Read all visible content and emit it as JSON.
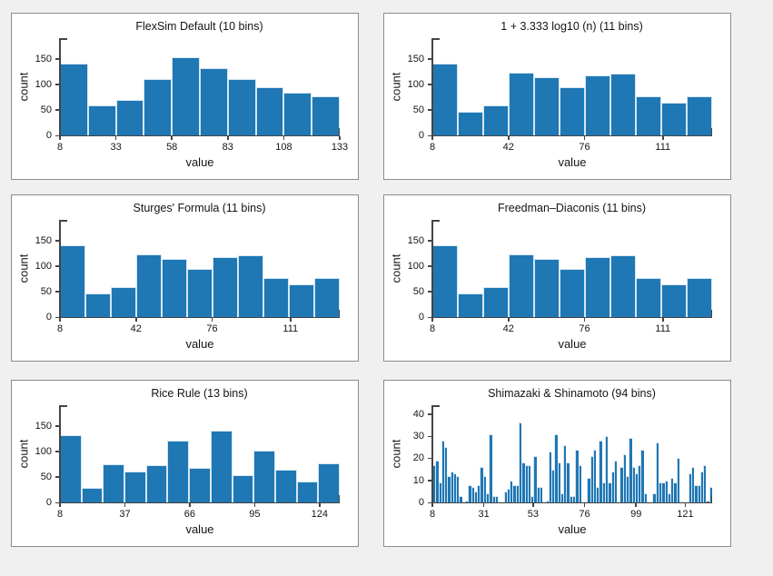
{
  "page": {
    "background_color": "#f0f0f0",
    "panel_background": "#ffffff",
    "panel_border_color": "#8c8c8c",
    "bar_color": "#1f77b4",
    "bar_edge_color": "#d6e6f2",
    "axis_color": "#454545",
    "text_color": "#141414",
    "grid_layout": "3 rows x 2 columns of histograms"
  },
  "chart_data": [
    {
      "type": "bar",
      "title": "FlexSim Default (10 bins)",
      "xlabel": "value",
      "ylabel": "count",
      "x_start": 8,
      "x_end": 133,
      "xticks": [
        8,
        33,
        58,
        83,
        108,
        133
      ],
      "yticks": [
        0,
        50,
        100,
        150
      ],
      "ymax": 190,
      "grid": false,
      "values": [
        140,
        58,
        69,
        110,
        153,
        132,
        110,
        95,
        84,
        77
      ]
    },
    {
      "type": "bar",
      "title": "1 + 3.333 log10 (n) (11 bins)",
      "xlabel": "value",
      "ylabel": "count",
      "x_start": 8,
      "x_end": 133,
      "xticks": [
        8,
        42,
        76,
        111
      ],
      "yticks": [
        0,
        50,
        100,
        150
      ],
      "ymax": 190,
      "grid": false,
      "values": [
        140,
        47,
        59,
        122,
        113,
        95,
        118,
        120,
        76,
        64,
        77
      ]
    },
    {
      "type": "bar",
      "title": "Sturges' Formula (11 bins)",
      "xlabel": "value",
      "ylabel": "count",
      "x_start": 8,
      "x_end": 133,
      "xticks": [
        8,
        42,
        76,
        111
      ],
      "yticks": [
        0,
        50,
        100,
        150
      ],
      "ymax": 190,
      "grid": false,
      "values": [
        140,
        47,
        59,
        122,
        113,
        95,
        118,
        120,
        76,
        64,
        77
      ]
    },
    {
      "type": "bar",
      "title": "Freedman–Diaconis (11 bins)",
      "xlabel": "value",
      "ylabel": "count",
      "x_start": 8,
      "x_end": 133,
      "xticks": [
        8,
        42,
        76,
        111
      ],
      "yticks": [
        0,
        50,
        100,
        150
      ],
      "ymax": 190,
      "grid": false,
      "values": [
        140,
        47,
        59,
        122,
        113,
        95,
        118,
        120,
        76,
        64,
        77
      ]
    },
    {
      "type": "bar",
      "title": "Rice Rule (13 bins)",
      "xlabel": "value",
      "ylabel": "count",
      "x_start": 8,
      "x_end": 133,
      "xticks": [
        8,
        37,
        66,
        95,
        124
      ],
      "yticks": [
        0,
        50,
        100,
        150
      ],
      "ymax": 190,
      "grid": false,
      "values": [
        131,
        28,
        75,
        61,
        73,
        121,
        67,
        141,
        54,
        102,
        64,
        41,
        77
      ]
    },
    {
      "type": "bar",
      "title": "Shimazaki & Shinamoto (94 bins)",
      "xlabel": "value",
      "ylabel": "count",
      "x_start": 8,
      "x_end": 133,
      "xticks": [
        8,
        31,
        53,
        76,
        99,
        121
      ],
      "yticks": [
        0,
        10,
        20,
        30,
        40
      ],
      "ymax": 44,
      "grid": false,
      "values": [
        17,
        19,
        9,
        28,
        25,
        12,
        14,
        13,
        12,
        3,
        0,
        1,
        8,
        7,
        5,
        8,
        16,
        12,
        4,
        31,
        3,
        3,
        0,
        0,
        5,
        6,
        10,
        8,
        8,
        36,
        18,
        17,
        17,
        3,
        21,
        7,
        7,
        0,
        1,
        23,
        15,
        31,
        18,
        4,
        26,
        18,
        3,
        3,
        24,
        17,
        0,
        0,
        11,
        21,
        24,
        7,
        28,
        9,
        30,
        9,
        14,
        19,
        0,
        16,
        22,
        12,
        29,
        16,
        13,
        17,
        24,
        4,
        0,
        0,
        4,
        27,
        9,
        9,
        10,
        4,
        11,
        9,
        20,
        0,
        0,
        0,
        13,
        16,
        8,
        8,
        14,
        17,
        1,
        7
      ]
    }
  ]
}
